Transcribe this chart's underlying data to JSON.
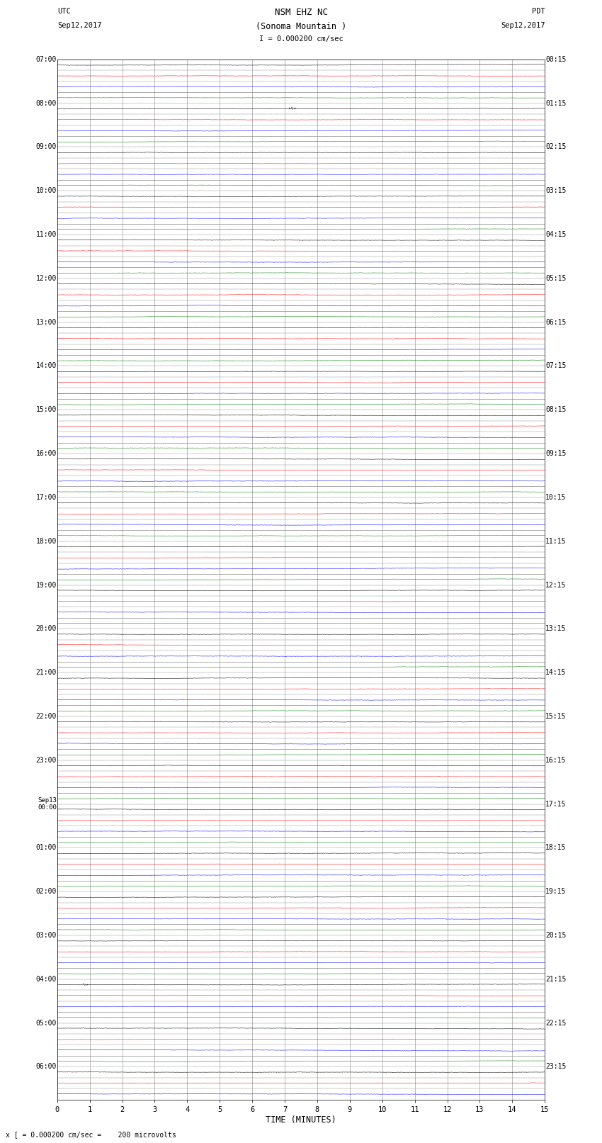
{
  "title_line1": "NSM EHZ NC",
  "title_line2": "(Sonoma Mountain )",
  "title_line3": "I = 0.000200 cm/sec",
  "left_label_line1": "UTC",
  "left_label_line2": "Sep12,2017",
  "right_label_line1": "PDT",
  "right_label_line2": "Sep12,2017",
  "bottom_label": "TIME (MINUTES)",
  "footnote": "x [ = 0.000200 cm/sec =    200 microvolts",
  "xlabel_ticks": [
    0,
    1,
    2,
    3,
    4,
    5,
    6,
    7,
    8,
    9,
    10,
    11,
    12,
    13,
    14,
    15
  ],
  "utc_labels": [
    "07:00",
    "",
    "",
    "",
    "08:00",
    "",
    "",
    "",
    "09:00",
    "",
    "",
    "",
    "10:00",
    "",
    "",
    "",
    "11:00",
    "",
    "",
    "",
    "12:00",
    "",
    "",
    "",
    "13:00",
    "",
    "",
    "",
    "14:00",
    "",
    "",
    "",
    "15:00",
    "",
    "",
    "",
    "16:00",
    "",
    "",
    "",
    "17:00",
    "",
    "",
    "",
    "18:00",
    "",
    "",
    "",
    "19:00",
    "",
    "",
    "",
    "20:00",
    "",
    "",
    "",
    "21:00",
    "",
    "",
    "",
    "22:00",
    "",
    "",
    "",
    "23:00",
    "",
    "",
    "",
    "Sep13\n00:00",
    "",
    "",
    "",
    "01:00",
    "",
    "",
    "",
    "02:00",
    "",
    "",
    "",
    "03:00",
    "",
    "",
    "",
    "04:00",
    "",
    "",
    "",
    "05:00",
    "",
    "",
    "",
    "06:00",
    "",
    ""
  ],
  "pdt_labels": [
    "00:15",
    "",
    "",
    "",
    "01:15",
    "",
    "",
    "",
    "02:15",
    "",
    "",
    "",
    "03:15",
    "",
    "",
    "",
    "04:15",
    "",
    "",
    "",
    "05:15",
    "",
    "",
    "",
    "06:15",
    "",
    "",
    "",
    "07:15",
    "",
    "",
    "",
    "08:15",
    "",
    "",
    "",
    "09:15",
    "",
    "",
    "",
    "10:15",
    "",
    "",
    "",
    "11:15",
    "",
    "",
    "",
    "12:15",
    "",
    "",
    "",
    "13:15",
    "",
    "",
    "",
    "14:15",
    "",
    "",
    "",
    "15:15",
    "",
    "",
    "",
    "16:15",
    "",
    "",
    "",
    "17:15",
    "",
    "",
    "",
    "18:15",
    "",
    "",
    "",
    "19:15",
    "",
    "",
    "",
    "20:15",
    "",
    "",
    "",
    "21:15",
    "",
    "",
    "",
    "22:15",
    "",
    "",
    "",
    "23:15",
    "",
    ""
  ],
  "num_rows": 95,
  "colors": [
    "black",
    "red",
    "blue",
    "green"
  ],
  "noise_amplitude": 0.025,
  "background_color": "white",
  "grid_color": "#888888",
  "xmin": 0,
  "xmax": 15,
  "fig_width": 8.5,
  "fig_height": 16.13,
  "trace_linewidth": 0.35,
  "samples": 1500
}
